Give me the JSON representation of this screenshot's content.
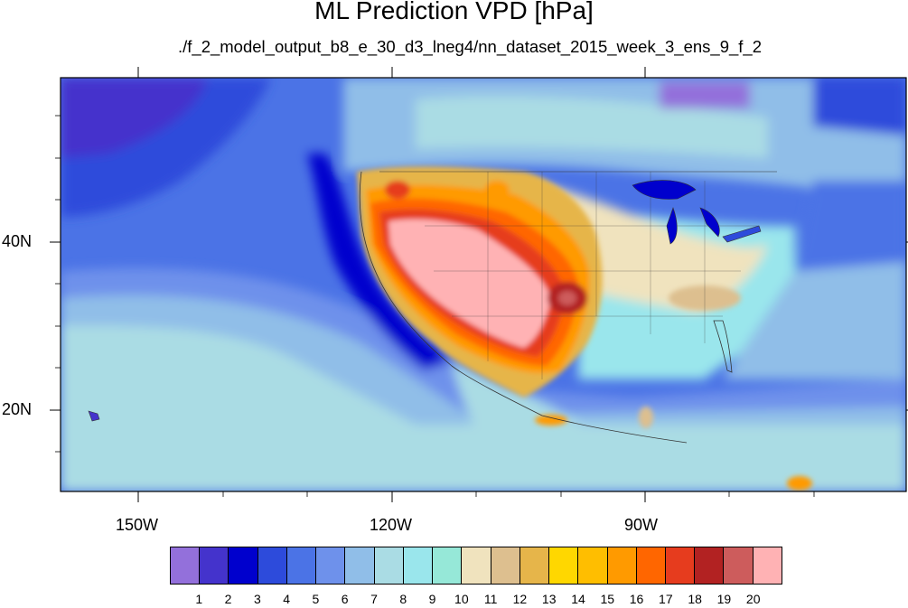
{
  "title": "ML Prediction VPD [hPa]",
  "subtitle": "./f_2_model_output_b8_e_30_d3_lneg4/nn_dataset_2015_week_3_ens_9_f_2",
  "lat_labels": [
    "40N",
    "20N"
  ],
  "lon_labels": [
    "150W",
    "120W",
    "90W"
  ],
  "colorbar": {
    "colors": [
      "#9370DB",
      "#4433CC",
      "#0000CD",
      "#2D4BDB",
      "#4B73E6",
      "#6E91EB",
      "#90BEE8",
      "#AADCE4",
      "#9AE6EC",
      "#96E8D8",
      "#F0E3BE",
      "#DDBF8F",
      "#E6B54A",
      "#FFD700",
      "#FFBE00",
      "#FF9A00",
      "#FF6600",
      "#E63C1E",
      "#B22222",
      "#CD5C5C",
      "#FFB2B4"
    ],
    "labels": [
      "1",
      "2",
      "3",
      "4",
      "5",
      "6",
      "7",
      "8",
      "9",
      "10",
      "11",
      "12",
      "13",
      "14",
      "15",
      "16",
      "17",
      "18",
      "19",
      "20"
    ]
  }
}
